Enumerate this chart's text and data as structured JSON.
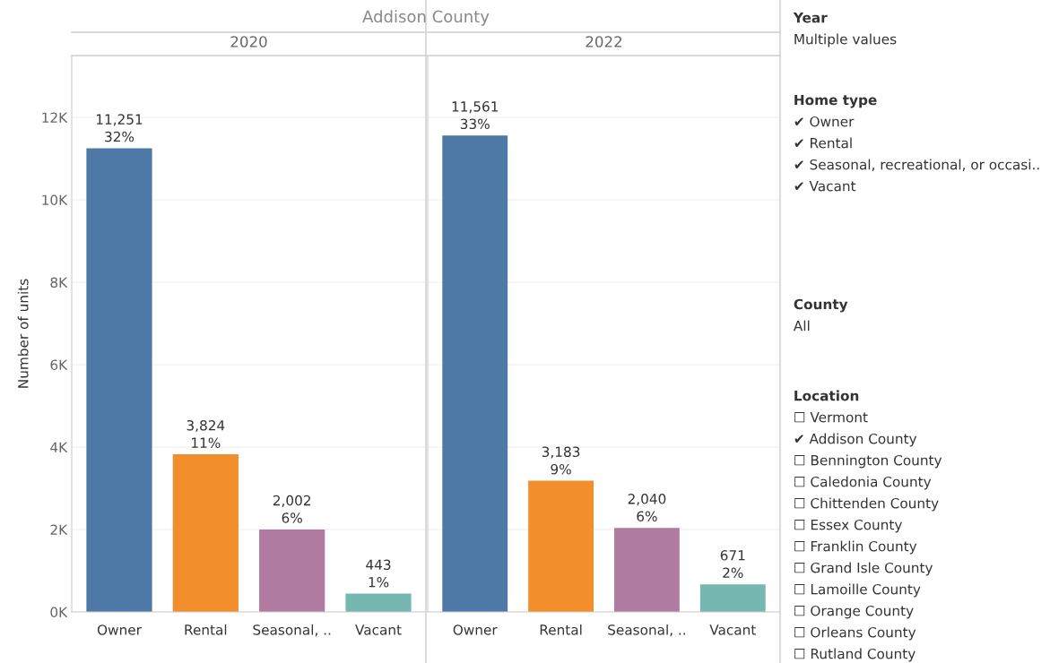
{
  "chart_data": [
    {
      "type": "bar",
      "title": "Addison County",
      "subtitle": "2020",
      "ylabel": "Number of units",
      "categories": [
        "Owner",
        "Rental",
        "Seasonal, ..",
        "Vacant"
      ],
      "values": [
        11251,
        3824,
        2002,
        443
      ],
      "colors": [
        "#4e79a7",
        "#f28e2b",
        "#b07aa1",
        "#76b7b2"
      ],
      "value_labels": [
        "11,251\n32%",
        "3,824\n11%",
        "2,002\n6%",
        "443\n1%"
      ],
      "ylim": [
        0,
        13500
      ],
      "yticks": [
        {
          "value": 0,
          "label": "0K"
        },
        {
          "value": 2000,
          "label": "2K"
        },
        {
          "value": 4000,
          "label": "4K"
        },
        {
          "value": 6000,
          "label": "6K"
        },
        {
          "value": 8000,
          "label": "8K"
        },
        {
          "value": 10000,
          "label": "10K"
        },
        {
          "value": 12000,
          "label": "12K"
        }
      ],
      "grid": "y"
    },
    {
      "type": "bar",
      "subtitle": "2022",
      "categories": [
        "Owner",
        "Rental",
        "Seasonal, ..",
        "Vacant"
      ],
      "values": [
        11561,
        3183,
        2040,
        671
      ],
      "colors": [
        "#4e79a7",
        "#f28e2b",
        "#b07aa1",
        "#76b7b2"
      ],
      "value_labels": [
        "11,561\n33%",
        "3,183\n9%",
        "2,040\n6%",
        "671\n2%"
      ],
      "ylim": [
        0,
        13500
      ],
      "yticks": [
        0,
        2000,
        4000,
        6000,
        8000,
        10000,
        12000
      ],
      "grid": "y",
      "tick_labels": "x"
    },
    {
      "type": "other",
      "title": "Year",
      "annotations": [
        "Multiple values"
      ]
    },
    {
      "type": "other",
      "title": "Home type",
      "annotations": [
        "✔ Owner",
        "✔ Rental",
        "✔ Seasonal, recreational, or occasi..",
        "✔ Vacant"
      ]
    },
    {
      "type": "other",
      "title": "County",
      "annotations": [
        "All"
      ]
    },
    {
      "type": "other",
      "title": "Location",
      "annotations": [
        "☐ Vermont",
        "✔ Addison County",
        "☐ Bennington County",
        "☐ Caledonia County",
        "☐ Chittenden County",
        "☐ Essex County",
        "☐ Franklin County",
        "☐ Grand Isle County",
        "☐ Lamoille County",
        "☐ Orange County",
        "☐ Orleans County",
        "☐ Rutland County"
      ]
    }
  ]
}
